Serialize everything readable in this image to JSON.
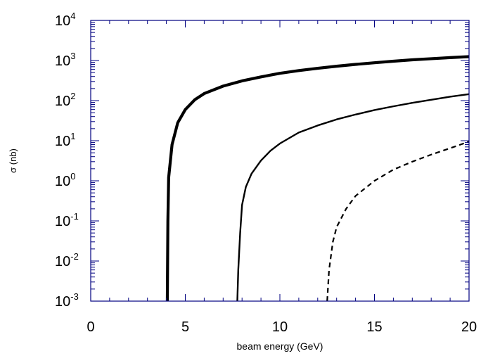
{
  "chart_data": {
    "type": "line",
    "title": "",
    "xlabel": "beam energy (GeV)",
    "ylabel": "σ (nb)",
    "xlim": [
      0,
      20
    ],
    "ylim": [
      0.001,
      10000
    ],
    "yscale": "log",
    "grid": false,
    "x_ticks": [
      "0",
      "5",
      "10",
      "15",
      "20"
    ],
    "y_ticks": [
      {
        "base": "10",
        "exp": "-3"
      },
      {
        "base": "10",
        "exp": "-2"
      },
      {
        "base": "10",
        "exp": "-1"
      },
      {
        "base": "10",
        "exp": "0"
      },
      {
        "base": "10",
        "exp": "1"
      },
      {
        "base": "10",
        "exp": "2"
      },
      {
        "base": "10",
        "exp": "3"
      },
      {
        "base": "10",
        "exp": "4"
      }
    ],
    "series": [
      {
        "style": "thick-solid",
        "points": [
          [
            4.05,
            0.001
          ],
          [
            4.08,
            0.1
          ],
          [
            4.12,
            1.2
          ],
          [
            4.3,
            8
          ],
          [
            4.6,
            28
          ],
          [
            5.0,
            60
          ],
          [
            5.5,
            105
          ],
          [
            6.0,
            150
          ],
          [
            7.0,
            230
          ],
          [
            8.0,
            310
          ],
          [
            9.0,
            390
          ],
          [
            10.0,
            480
          ],
          [
            11.0,
            560
          ],
          [
            12.0,
            640
          ],
          [
            13.0,
            720
          ],
          [
            14.0,
            800
          ],
          [
            15.0,
            880
          ],
          [
            16.0,
            960
          ],
          [
            17.0,
            1040
          ],
          [
            18.0,
            1110
          ],
          [
            19.0,
            1180
          ],
          [
            20.0,
            1250
          ]
        ]
      },
      {
        "style": "solid",
        "points": [
          [
            7.75,
            0.001
          ],
          [
            7.8,
            0.006
          ],
          [
            7.9,
            0.05
          ],
          [
            8.0,
            0.25
          ],
          [
            8.2,
            0.7
          ],
          [
            8.5,
            1.5
          ],
          [
            9.0,
            3.2
          ],
          [
            9.5,
            5.6
          ],
          [
            10.0,
            8.5
          ],
          [
            11.0,
            16
          ],
          [
            12.0,
            24
          ],
          [
            13.0,
            34
          ],
          [
            14.0,
            45
          ],
          [
            15.0,
            58
          ],
          [
            16.0,
            72
          ],
          [
            17.0,
            88
          ],
          [
            18.0,
            105
          ],
          [
            19.0,
            125
          ],
          [
            20.0,
            145
          ]
        ]
      },
      {
        "style": "dashed",
        "points": [
          [
            12.5,
            0.001
          ],
          [
            12.6,
            0.006
          ],
          [
            12.8,
            0.03
          ],
          [
            13.0,
            0.07
          ],
          [
            13.5,
            0.2
          ],
          [
            14.0,
            0.42
          ],
          [
            15.0,
            1.0
          ],
          [
            16.0,
            1.9
          ],
          [
            17.0,
            3.0
          ],
          [
            18.0,
            4.5
          ],
          [
            19.0,
            6.5
          ],
          [
            20.0,
            9.5
          ]
        ]
      }
    ]
  }
}
